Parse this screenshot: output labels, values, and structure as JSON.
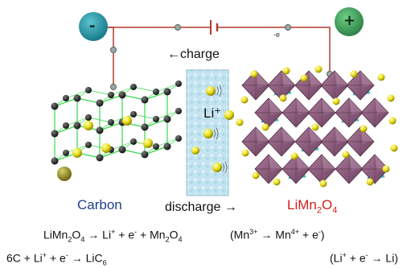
{
  "circuit": {
    "negative_terminal": "-",
    "positive_terminal": "+",
    "electron_label": "-e"
  },
  "labels": {
    "charge": "←charge",
    "discharge": "discharge →",
    "ion": "Li⁺",
    "anode": "Carbon",
    "cathode_pre": "LiMn",
    "cathode_sub1": "2",
    "cathode_mid": "O",
    "cathode_sub2": "4"
  },
  "equations": {
    "cathode": {
      "a": "LiMn",
      "a_sub": "2",
      "b": "O",
      "b_sub": "4",
      "c": " → Li",
      "c_sup": "+",
      "d": " + e",
      "d_sup": "-",
      "e": " + Mn",
      "e_sub": "2",
      "f": "O",
      "f_sub": "4"
    },
    "manganese": {
      "a": "(Mn",
      "a_sup": "3+",
      "b": " → Mn",
      "b_sup": "4+",
      "c": " + e",
      "c_sup": "-",
      "d": ")"
    },
    "anode": {
      "a": "6C + Li",
      "a_sup": "+",
      "b": " + e",
      "b_sup": "-",
      "c": " → LiC",
      "c_sub": "6"
    },
    "lithium": {
      "a": "(Li",
      "a_sup": "+",
      "b": " + e",
      "b_sup": "-",
      "c": " → Li)"
    }
  },
  "colors": {
    "negative": "#1e8fa0",
    "positive": "#3a9a55",
    "wire": "#b23a2e",
    "lattice": "#3ad84a",
    "lithium": "#e6de10",
    "octahedron": "#8a5a78",
    "tetrahedron": "#3cc9c9",
    "separator": "#bfe2ee"
  }
}
